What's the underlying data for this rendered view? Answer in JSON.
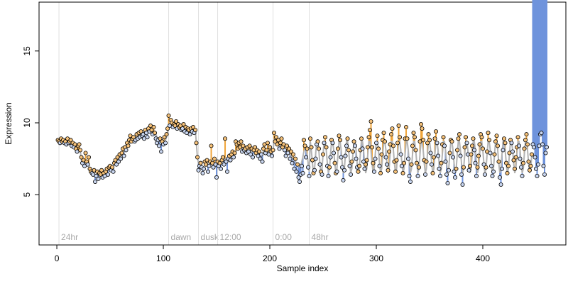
{
  "chart_data": {
    "type": "scatter",
    "x_label": "Sample index",
    "y_label": "Expression",
    "xlim": [
      -16.7,
      478
    ],
    "ylim": [
      1.5,
      18.4
    ],
    "xticks": [
      0,
      100,
      200,
      300,
      400
    ],
    "yticks": [
      5,
      10,
      15
    ],
    "fit_color": "#b3b3b3",
    "above_color": "#f0a53a",
    "below_color": "#6f93dc",
    "point_fill_above": "#f6c27a",
    "point_fill_below": "#c9d6f0",
    "annotations": [
      {
        "x": 2,
        "label": "24hr"
      },
      {
        "x": 105,
        "label": "dawn"
      },
      {
        "x": 133,
        "label": "dusk"
      },
      {
        "x": 151,
        "label": "12:00"
      },
      {
        "x": 203,
        "label": "0:00"
      },
      {
        "x": 237,
        "label": "48hr"
      }
    ],
    "x": [
      1,
      2,
      3,
      4,
      5,
      6,
      7,
      8,
      9,
      10,
      11,
      12,
      13,
      14,
      15,
      16,
      17,
      18,
      19,
      20,
      21,
      22,
      23,
      24,
      25,
      26,
      27,
      28,
      29,
      30,
      31,
      32,
      33,
      34,
      35,
      36,
      37,
      38,
      39,
      40,
      41,
      42,
      43,
      44,
      45,
      46,
      47,
      48,
      49,
      50,
      51,
      52,
      53,
      54,
      55,
      56,
      57,
      58,
      59,
      60,
      61,
      62,
      63,
      64,
      65,
      66,
      67,
      68,
      69,
      70,
      71,
      72,
      73,
      74,
      75,
      76,
      77,
      78,
      79,
      80,
      81,
      82,
      83,
      84,
      85,
      86,
      87,
      88,
      89,
      90,
      91,
      92,
      93,
      94,
      95,
      96,
      97,
      98,
      99,
      100,
      101,
      102,
      103,
      104,
      105,
      106,
      107,
      108,
      109,
      110,
      111,
      112,
      113,
      114,
      115,
      116,
      117,
      118,
      119,
      120,
      121,
      122,
      123,
      124,
      125,
      126,
      127,
      128,
      129,
      130,
      131,
      132,
      133,
      134,
      135,
      136,
      137,
      138,
      139,
      140,
      141,
      142,
      143,
      144,
      145,
      146,
      147,
      148,
      149,
      150,
      151,
      152,
      153,
      154,
      155,
      156,
      157,
      158,
      159,
      160,
      161,
      162,
      163,
      164,
      165,
      166,
      167,
      168,
      169,
      170,
      171,
      172,
      173,
      174,
      175,
      176,
      177,
      178,
      179,
      180,
      181,
      182,
      183,
      184,
      185,
      186,
      187,
      188,
      189,
      190,
      191,
      192,
      193,
      194,
      195,
      196,
      197,
      198,
      199,
      200,
      201,
      202,
      203,
      204,
      205,
      206,
      207,
      208,
      209,
      210,
      211,
      212,
      213,
      214,
      215,
      216,
      217,
      218,
      219,
      220,
      221,
      222,
      223,
      224,
      225,
      226,
      227,
      228,
      229,
      230,
      231,
      232,
      233,
      234,
      235,
      236,
      237,
      238,
      239,
      240,
      241,
      242,
      243,
      244,
      245,
      246,
      247,
      248,
      249,
      250,
      251,
      252,
      253,
      254,
      255,
      256,
      257,
      258,
      259,
      260,
      261,
      262,
      263,
      264,
      265,
      266,
      267,
      268,
      269,
      270,
      271,
      272,
      273,
      274,
      275,
      276,
      277,
      278,
      279,
      280,
      281,
      282,
      283,
      284,
      285,
      286,
      287,
      288,
      289,
      290,
      291,
      292,
      293,
      294,
      295,
      296,
      297,
      298,
      299,
      300,
      301,
      302,
      303,
      304,
      305,
      306,
      307,
      308,
      309,
      310,
      311,
      312,
      313,
      314,
      315,
      316,
      317,
      318,
      319,
      320,
      321,
      322,
      323,
      324,
      325,
      326,
      327,
      328,
      329,
      330,
      331,
      332,
      333,
      334,
      335,
      336,
      337,
      338,
      339,
      340,
      341,
      342,
      343,
      344,
      345,
      346,
      347,
      348,
      349,
      350,
      351,
      352,
      353,
      354,
      355,
      356,
      357,
      358,
      359,
      360,
      361,
      362,
      363,
      364,
      365,
      366,
      367,
      368,
      369,
      370,
      371,
      372,
      373,
      374,
      375,
      376,
      377,
      378,
      379,
      380,
      381,
      382,
      383,
      384,
      385,
      386,
      387,
      388,
      389,
      390,
      391,
      392,
      393,
      394,
      395,
      396,
      397,
      398,
      399,
      400,
      401,
      402,
      403,
      404,
      405,
      406,
      407,
      408,
      409,
      410,
      411,
      412,
      413,
      414,
      415,
      416,
      417,
      418,
      419,
      420,
      421,
      422,
      423,
      424,
      425,
      426,
      427,
      428,
      429,
      430,
      431,
      432,
      433,
      434,
      435,
      436,
      437,
      438,
      439,
      440,
      441,
      442,
      443,
      444,
      445,
      446,
      447,
      448,
      449,
      450,
      451,
      452,
      453,
      454,
      455,
      456,
      457,
      458,
      459,
      460
    ],
    "series": [
      {
        "name": "observed",
        "values": [
          8.8,
          8.7,
          8.6,
          8.9,
          8.7,
          8.8,
          8.6,
          8.7,
          8.5,
          8.9,
          8.6,
          8.7,
          8.8,
          8.4,
          8.6,
          8.3,
          8.5,
          8.2,
          8.0,
          8.4,
          8.5,
          8.1,
          7.6,
          7.2,
          7.4,
          7.0,
          7.9,
          7.3,
          7.1,
          7.6,
          6.8,
          6.6,
          6.5,
          6.4,
          6.7,
          5.9,
          6.3,
          6.6,
          6.1,
          6.5,
          6.4,
          6.7,
          6.2,
          6.5,
          6.3,
          6.6,
          6.8,
          6.4,
          6.9,
          7.0,
          6.7,
          6.9,
          6.6,
          7.2,
          7.4,
          7.1,
          7.6,
          7.3,
          7.8,
          7.5,
          7.9,
          8.2,
          7.7,
          8.3,
          8.1,
          8.6,
          8.4,
          8.8,
          9.1,
          8.7,
          8.9,
          9.0,
          8.7,
          8.8,
          9.2,
          8.9,
          9.3,
          9.0,
          9.4,
          9.1,
          9.2,
          8.9,
          9.5,
          9.3,
          9.0,
          9.6,
          9.4,
          9.8,
          9.5,
          9.2,
          9.7,
          9.3,
          8.9,
          8.6,
          8.8,
          8.4,
          8.9,
          8.0,
          8.7,
          8.5,
          9.0,
          8.6,
          9.2,
          9.6,
          10.5,
          9.8,
          10.2,
          10.0,
          9.7,
          9.9,
          9.8,
          10.1,
          9.6,
          9.9,
          9.7,
          9.8,
          9.5,
          9.6,
          9.9,
          9.4,
          9.7,
          9.3,
          9.6,
          9.5,
          9.2,
          9.6,
          9.4,
          9.7,
          9.3,
          9.5,
          8.6,
          7.6,
          6.7,
          7.0,
          7.2,
          6.9,
          6.5,
          6.8,
          7.3,
          7.1,
          7.4,
          6.6,
          7.0,
          7.3,
          8.4,
          7.2,
          6.9,
          7.5,
          7.1,
          6.2,
          7.3,
          7.0,
          7.2,
          6.8,
          7.4,
          7.6,
          7.1,
          8.9,
          7.3,
          6.6,
          7.5,
          7.7,
          7.4,
          7.8,
          8.0,
          7.6,
          7.9,
          8.7,
          8.5,
          8.2,
          8.6,
          8.3,
          8.7,
          8.0,
          8.4,
          8.1,
          8.2,
          7.9,
          8.3,
          8.0,
          8.4,
          7.8,
          8.2,
          7.6,
          8.1,
          8.3,
          7.9,
          8.1,
          7.7,
          8.0,
          7.5,
          7.8,
          7.3,
          8.2,
          8.5,
          7.9,
          8.1,
          8.6,
          7.8,
          8.3,
          8.0,
          7.7,
          8.1,
          9.3,
          8.7,
          9.0,
          8.5,
          8.8,
          8.2,
          8.6,
          8.9,
          8.3,
          8.5,
          8.1,
          7.7,
          8.4,
          7.9,
          8.2,
          7.5,
          8.0,
          7.2,
          7.8,
          6.8,
          7.5,
          6.6,
          7.1,
          6.2,
          5.9,
          6.4,
          7.0,
          6.5,
          8.8,
          8.4,
          7.6,
          8.2,
          6.9,
          6.3,
          8.9,
          8.3,
          7.4,
          6.5,
          6.7,
          7.5,
          8.5,
          8.7,
          8.2,
          7.1,
          6.6,
          6.4,
          7.8,
          8.6,
          9.0,
          8.3,
          7.0,
          6.3,
          6.9,
          7.6,
          8.8,
          8.6,
          7.9,
          7.2,
          6.5,
          6.6,
          8.2,
          9.1,
          8.8,
          7.6,
          6.9,
          6.0,
          6.7,
          7.7,
          8.4,
          8.9,
          8.1,
          7.0,
          6.4,
          7.3,
          8.0,
          8.7,
          8.4,
          7.5,
          6.9,
          6.6,
          7.0,
          8.1,
          8.9,
          8.2,
          7.3,
          6.8,
          7.1,
          7.4,
          8.3,
          9.0,
          9.5,
          10.1,
          8.3,
          7.2,
          6.6,
          7.5,
          8.6,
          9.1,
          8.2,
          7.0,
          6.5,
          7.8,
          8.8,
          9.3,
          8.7,
          7.6,
          7.1,
          6.7,
          8.0,
          8.5,
          9.2,
          9.6,
          8.4,
          7.3,
          6.6,
          7.4,
          8.6,
          9.8,
          9.0,
          7.8,
          7.0,
          6.5,
          7.2,
          8.9,
          9.7,
          8.9,
          7.5,
          6.3,
          5.9,
          7.1,
          8.4,
          9.3,
          9.0,
          8.1,
          7.2,
          6.3,
          6.9,
          8.7,
          9.9,
          9.6,
          8.8,
          7.4,
          6.4,
          7.3,
          8.6,
          9.2,
          8.8,
          7.9,
          7.1,
          6.5,
          7.6,
          8.9,
          9.4,
          8.6,
          7.7,
          6.8,
          6.3,
          7.2,
          8.5,
          9.0,
          8.4,
          7.3,
          6.4,
          5.8,
          6.7,
          7.9,
          8.8,
          8.7,
          7.6,
          6.6,
          6.2,
          6.8,
          8.1,
          8.9,
          9.2,
          7.7,
          6.4,
          5.7,
          6.9,
          8.3,
          9.0,
          8.6,
          7.8,
          6.7,
          7.0,
          7.8,
          8.4,
          8.9,
          8.1,
          7.2,
          6.3,
          6.9,
          7.7,
          8.5,
          9.2,
          9.0,
          8.2,
          7.1,
          6.4,
          6.9,
          8.0,
          9.3,
          8.8,
          7.9,
          7.0,
          6.3,
          6.6,
          7.8,
          8.7,
          9.1,
          8.4,
          7.3,
          6.2,
          5.7,
          6.8,
          8.1,
          8.9,
          8.6,
          7.2,
          6.5,
          7.0,
          7.9,
          8.8,
          8.6,
          8.0,
          7.4,
          6.8,
          7.6,
          8.3,
          9.0,
          8.4,
          7.5,
          6.9,
          6.3,
          7.2,
          8.2,
          8.8,
          9.2,
          8.5,
          7.3,
          6.7,
          7.0,
          7.8,
          8.5,
          8.3,
          7.6,
          6.8,
          6.3,
          7.1,
          8.4,
          9.2,
          9.3,
          8.5,
          7.0,
          6.4,
          7.9,
          8.3
        ]
      },
      {
        "name": "fit",
        "values": [
          8.7,
          8.7,
          8.7,
          8.7,
          8.7,
          8.7,
          8.7,
          8.7,
          8.7,
          8.7,
          8.7,
          8.7,
          8.7,
          8.7,
          8.5,
          8.5,
          8.5,
          8.1,
          8.1,
          8.1,
          8.1,
          8.1,
          7.4,
          7.4,
          7.4,
          7.2,
          7.2,
          7.2,
          7.2,
          7.2,
          6.6,
          6.6,
          6.6,
          6.5,
          6.5,
          6.4,
          6.4,
          6.4,
          6.4,
          6.4,
          6.4,
          6.4,
          6.4,
          6.4,
          6.4,
          6.6,
          6.7,
          6.7,
          6.8,
          6.8,
          6.9,
          6.9,
          7.0,
          7.1,
          7.2,
          7.3,
          7.4,
          7.5,
          7.6,
          7.7,
          7.8,
          7.9,
          8.0,
          8.1,
          8.2,
          8.3,
          8.4,
          8.5,
          8.6,
          8.7,
          8.8,
          8.8,
          8.9,
          8.9,
          9.0,
          9.0,
          9.1,
          9.1,
          9.2,
          9.2,
          9.3,
          9.3,
          9.3,
          9.4,
          9.4,
          9.4,
          9.5,
          9.5,
          9.5,
          9.4,
          9.4,
          9.3,
          9.2,
          9.0,
          8.9,
          8.8,
          8.7,
          8.6,
          8.6,
          8.6,
          8.7,
          8.8,
          9.0,
          9.3,
          9.9,
          9.9,
          9.9,
          9.9,
          9.9,
          9.8,
          9.8,
          9.8,
          9.8,
          9.8,
          9.7,
          9.7,
          9.7,
          9.7,
          9.6,
          9.6,
          9.6,
          9.6,
          9.6,
          9.5,
          9.5,
          9.5,
          9.5,
          9.5,
          9.5,
          9.5,
          8.6,
          7.6,
          7.2,
          7.1,
          7.0,
          7.0,
          6.9,
          6.9,
          7.0,
          7.0,
          7.1,
          7.1,
          7.1,
          7.2,
          7.2,
          7.2,
          7.2,
          7.2,
          7.2,
          7.2,
          7.2,
          7.2,
          7.2,
          7.3,
          7.3,
          7.4,
          7.4,
          7.5,
          7.5,
          7.6,
          7.6,
          7.7,
          7.7,
          7.8,
          7.8,
          7.9,
          7.9,
          8.0,
          8.1,
          8.2,
          8.2,
          8.2,
          8.2,
          8.2,
          8.2,
          8.2,
          8.1,
          8.1,
          8.1,
          8.1,
          8.1,
          8.0,
          8.0,
          8.0,
          8.0,
          8.0,
          7.9,
          7.9,
          7.9,
          7.9,
          7.9,
          7.9,
          7.9,
          8.0,
          8.0,
          8.0,
          8.0,
          8.0,
          8.0,
          8.0,
          8.0,
          8.0,
          8.0,
          8.8,
          8.7,
          8.6,
          8.5,
          8.5,
          8.4,
          8.4,
          8.4,
          8.3,
          8.3,
          8.2,
          8.1,
          8.0,
          8.0,
          7.9,
          7.8,
          7.7,
          7.6,
          7.5,
          7.4,
          7.3,
          7.2,
          7.1,
          7.0,
          6.9,
          7.0,
          7.3,
          7.6,
          8.0,
          8.2,
          8.1,
          7.8,
          7.2,
          6.6,
          8.7,
          8.1,
          7.2,
          6.5,
          6.8,
          7.8,
          8.7,
          8.7,
          8.1,
          7.2,
          6.5,
          6.8,
          7.8,
          8.7,
          8.7,
          8.1,
          7.2,
          6.5,
          6.8,
          7.8,
          8.7,
          8.7,
          8.1,
          7.2,
          6.5,
          6.8,
          7.8,
          8.7,
          8.7,
          8.1,
          7.2,
          6.5,
          6.8,
          7.8,
          8.7,
          8.7,
          8.1,
          7.2,
          6.5,
          6.8,
          7.8,
          8.7,
          8.7,
          8.1,
          7.2,
          6.5,
          6.8,
          7.8,
          8.7,
          8.7,
          8.1,
          7.2,
          6.5,
          6.8,
          7.8,
          8.7,
          8.7,
          8.1,
          7.2,
          6.5,
          6.8,
          7.8,
          8.7,
          8.7,
          8.1,
          7.2,
          6.5,
          6.8,
          7.8,
          8.7,
          8.7,
          8.1,
          7.2,
          6.5,
          6.8,
          7.8,
          8.7,
          8.7,
          8.1,
          7.2,
          6.5,
          6.8,
          7.8,
          8.7,
          8.7,
          8.1,
          7.2,
          6.5,
          6.8,
          7.8,
          8.7,
          8.7,
          8.1,
          7.2,
          6.5,
          6.8,
          7.8,
          8.7,
          8.7,
          8.1,
          7.2,
          6.5,
          6.8,
          7.8,
          8.7,
          8.7,
          8.1,
          7.2,
          6.5,
          6.8,
          7.8,
          8.7,
          8.7,
          8.1,
          7.2,
          6.5,
          6.8,
          7.8,
          8.7,
          8.7,
          8.1,
          7.2,
          6.5,
          6.8,
          7.8,
          8.7,
          8.7,
          8.1,
          7.2,
          6.5,
          6.8,
          7.8,
          8.7,
          8.7,
          8.1,
          7.2,
          6.5,
          6.8,
          7.8,
          8.7,
          8.7,
          8.1,
          7.2,
          6.5,
          6.8,
          7.8,
          8.7,
          8.7,
          8.1,
          7.2,
          6.5,
          6.8,
          7.8,
          8.7,
          8.7,
          8.1,
          7.2,
          6.5,
          6.8,
          7.8,
          8.7,
          8.7,
          8.1,
          7.2,
          6.5,
          6.8,
          7.8,
          8.7,
          8.7,
          8.1,
          7.2,
          6.5,
          6.8,
          7.8,
          8.7,
          8.7,
          8.1,
          7.2,
          6.5,
          6.8,
          7.8,
          8.7,
          8.7,
          8.1,
          7.2,
          6.5,
          6.8,
          7.8,
          8.7,
          8.7,
          8.1,
          7.2,
          6.5,
          6.8,
          7.8,
          8.7,
          8.7,
          8.1,
          7.2,
          6.5,
          6.8,
          7.8,
          8.7,
          8.7,
          8.1,
          7.2,
          6.5,
          6.8,
          7.8
        ]
      }
    ]
  }
}
